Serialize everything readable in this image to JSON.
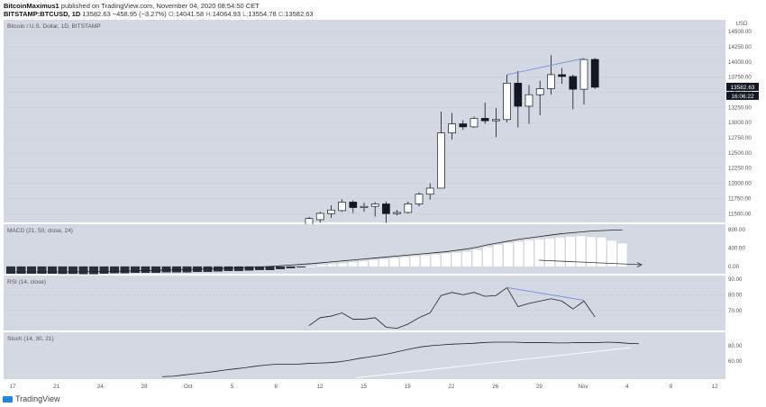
{
  "header": {
    "author": "BitcoinMaximus1",
    "published_text": "published on TradingView.com, November 04, 2020 08:54:50 CET",
    "symbol": "BITSTAMP:BTCUSD, 1D",
    "price": "13582.63",
    "change": "−458.95 (−3.27%)",
    "o_label": "O:",
    "o_value": "14041.58",
    "h_label": "H:",
    "h_value": "14064.93",
    "l_label": "L:",
    "l_value": "13554.78",
    "c_label": "C:",
    "c_value": "13582.63"
  },
  "footer": {
    "logo_text": "TradingView"
  },
  "colors": {
    "panel_bg": "#d4d8e2",
    "bull": "#ffffff",
    "bear": "#131722",
    "trendline": "#7b93d9",
    "axis_text": "#555555"
  },
  "chart_data": [
    {
      "type": "candlestick",
      "title": "Bitcoin / U.S. Dollar, 1D, BITSTAMP",
      "currency": "USD",
      "ylim": [
        11400,
        14620
      ],
      "yticks": [
        11500,
        11750,
        12000,
        12250,
        12500,
        12750,
        13000,
        13250,
        13500,
        13750,
        14000,
        14250,
        14500
      ],
      "ytick_labels": [
        "11500.00",
        "11750.00",
        "12000.00",
        "12250.00",
        "12500.00",
        "12750.00",
        "13000.00",
        "13250.00",
        "13500.00",
        "13750.00",
        "14000.00",
        "14250.00",
        "14500.00"
      ],
      "last_price_label": "13582.63",
      "countdown_label": "16:06:22",
      "candles": [
        {
          "d": "Oct 9",
          "o": 11310,
          "h": 11450,
          "l": 11180,
          "c": 11420
        },
        {
          "d": "Oct 10",
          "o": 11400,
          "h": 11530,
          "l": 11350,
          "c": 11505
        },
        {
          "d": "Oct 11",
          "o": 11500,
          "h": 11640,
          "l": 11430,
          "c": 11560
        },
        {
          "d": "Oct 12",
          "o": 11550,
          "h": 11735,
          "l": 11530,
          "c": 11690
        },
        {
          "d": "Oct 13",
          "o": 11690,
          "h": 11720,
          "l": 11510,
          "c": 11600
        },
        {
          "d": "Oct 14",
          "o": 11600,
          "h": 11680,
          "l": 11530,
          "c": 11620
        },
        {
          "d": "Oct 15",
          "o": 11620,
          "h": 11690,
          "l": 11450,
          "c": 11660
        },
        {
          "d": "Oct 16",
          "o": 11660,
          "h": 11700,
          "l": 11350,
          "c": 11500
        },
        {
          "d": "Oct 17",
          "o": 11500,
          "h": 11560,
          "l": 11470,
          "c": 11520
        },
        {
          "d": "Oct 18",
          "o": 11520,
          "h": 11700,
          "l": 11500,
          "c": 11660
        },
        {
          "d": "Oct 19",
          "o": 11660,
          "h": 11850,
          "l": 11620,
          "c": 11820
        },
        {
          "d": "Oct 20",
          "o": 11820,
          "h": 12000,
          "l": 11730,
          "c": 11920
        },
        {
          "d": "Oct 21",
          "o": 11920,
          "h": 13180,
          "l": 11920,
          "c": 12830
        },
        {
          "d": "Oct 22",
          "o": 12830,
          "h": 13160,
          "l": 12720,
          "c": 12980
        },
        {
          "d": "Oct 23",
          "o": 12980,
          "h": 13040,
          "l": 12880,
          "c": 12930
        },
        {
          "d": "Oct 24",
          "o": 12930,
          "h": 13100,
          "l": 12910,
          "c": 13070
        },
        {
          "d": "Oct 25",
          "o": 13070,
          "h": 13330,
          "l": 12980,
          "c": 13030
        },
        {
          "d": "Oct 26",
          "o": 13030,
          "h": 13240,
          "l": 12760,
          "c": 13050
        },
        {
          "d": "Oct 27",
          "o": 13050,
          "h": 13790,
          "l": 13000,
          "c": 13650
        },
        {
          "d": "Oct 28",
          "o": 13650,
          "h": 13850,
          "l": 12920,
          "c": 13270
        },
        {
          "d": "Oct 29",
          "o": 13270,
          "h": 13620,
          "l": 12980,
          "c": 13460
        },
        {
          "d": "Oct 30",
          "o": 13460,
          "h": 13690,
          "l": 13120,
          "c": 13560
        },
        {
          "d": "Oct 31",
          "o": 13560,
          "h": 14110,
          "l": 13460,
          "c": 13790
        },
        {
          "d": "Nov 1",
          "o": 13790,
          "h": 13900,
          "l": 13640,
          "c": 13760
        },
        {
          "d": "Nov 2",
          "o": 13760,
          "h": 13790,
          "l": 13220,
          "c": 13550
        },
        {
          "d": "Nov 3",
          "o": 13550,
          "h": 14060,
          "l": 13300,
          "c": 14040
        },
        {
          "d": "Nov 4",
          "o": 14041.58,
          "h": 14064.93,
          "l": 13554.78,
          "c": 13582.63
        }
      ]
    },
    {
      "type": "line",
      "title": "MACD (21, 50, close, 24)",
      "ylim": [
        -120,
        880
      ],
      "yticks": [
        0,
        400,
        800
      ],
      "ytick_labels": [
        "0.00",
        "400.00",
        "800.00"
      ],
      "histogram": [
        -160,
        -160,
        -160,
        -160,
        -160,
        -165,
        -165,
        -170,
        -170,
        -160,
        -150,
        -150,
        -140,
        -140,
        -140,
        -130,
        -130,
        -130,
        -120,
        -120,
        -110,
        -100,
        -100,
        -90,
        -80,
        -80,
        -60,
        -40,
        -20,
        0,
        30,
        50,
        70,
        90,
        110,
        140,
        160,
        180,
        200,
        220,
        240,
        260,
        280,
        300,
        320,
        360,
        420,
        470,
        510,
        540,
        570,
        590,
        610,
        630,
        650,
        660,
        640,
        630,
        560,
        500
      ],
      "macd": [
        -120,
        -120,
        -120,
        -120,
        -120,
        -120,
        -118,
        -115,
        -112,
        -108,
        -104,
        -100,
        -95,
        -90,
        -86,
        -80,
        -74,
        -70,
        -64,
        -56,
        -48,
        -40,
        -32,
        -22,
        -12,
        0,
        15,
        30,
        45,
        60,
        80,
        100,
        120,
        140,
        160,
        180,
        200,
        220,
        240,
        260,
        280,
        300,
        320,
        350,
        380,
        420,
        470,
        510,
        550,
        590,
        620,
        650,
        680,
        710,
        730,
        750,
        770,
        780,
        790,
        790
      ]
    },
    {
      "type": "line",
      "title": "RSI (14, close)",
      "ylim": [
        58,
        91
      ],
      "yticks": [
        70,
        80,
        90
      ],
      "ytick_labels": [
        "70.00",
        "80.00",
        "90.00"
      ],
      "values": [
        60.5,
        65.5,
        66.5,
        68.5,
        64.5,
        64.5,
        65.5,
        59.5,
        58.8,
        61.5,
        65.5,
        68.5,
        79.5,
        81.5,
        80.0,
        81.5,
        79.0,
        79.5,
        84.5,
        72.5,
        74.5,
        76.0,
        77.5,
        76.0,
        71.0,
        76.0,
        66.0
      ]
    },
    {
      "type": "line",
      "title": "Stoch (14, 30, 21)",
      "ylim": [
        38,
        95
      ],
      "yticks": [
        60,
        80
      ],
      "ytick_labels": [
        "60.00",
        "80.00"
      ],
      "values": [
        40,
        40.5,
        42,
        43.5,
        45,
        46.5,
        48.5,
        50,
        51.5,
        53.5,
        55,
        56,
        56,
        56,
        57,
        57.5,
        58,
        59,
        61,
        63.5,
        65.5,
        67.5,
        70,
        73,
        76,
        78.5,
        80,
        81,
        82,
        82.5,
        83,
        84,
        84.5,
        84.5,
        84.5,
        84,
        84,
        84,
        83.5,
        83.5,
        84,
        84,
        84,
        84.5,
        84,
        83,
        82.5
      ]
    }
  ],
  "x_axis": {
    "labels": [
      "17",
      "21",
      "24",
      "28",
      "Oct",
      "5",
      "8",
      "12",
      "15",
      "19",
      "22",
      "26",
      "29",
      "Nov",
      "4",
      "9",
      "12"
    ]
  }
}
